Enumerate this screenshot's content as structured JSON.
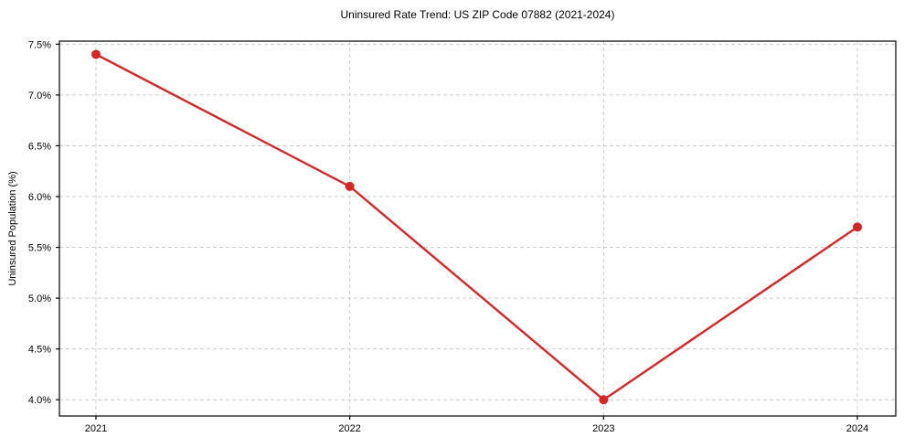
{
  "chart_data": {
    "type": "line",
    "title": "Uninsured Rate Trend: US ZIP Code 07882 (2021-2024)",
    "xlabel": "",
    "ylabel": "Uninsured Population (%)",
    "x": [
      2021,
      2022,
      2023,
      2024
    ],
    "x_tick_labels": [
      "2021",
      "2022",
      "2023",
      "2024"
    ],
    "values": [
      7.4,
      6.1,
      4.0,
      5.7
    ],
    "y_tick_values": [
      7.5,
      7.0,
      6.5,
      6.0,
      5.5,
      5.0,
      4.5,
      4.0
    ],
    "y_tick_labels": [
      "7.5%",
      "7.0%",
      "6.5%",
      "6.0%",
      "5.5%",
      "5.0%",
      "4.5%",
      "4.0%"
    ],
    "ylim": [
      3.84,
      7.53
    ],
    "grid": true,
    "grid_style": "dashed",
    "legend": false,
    "marker": "circle",
    "colors": {
      "line": "#d62728",
      "marker": "#d62728",
      "grid": "#cccccc",
      "axis": "#000000",
      "background": "#ffffff"
    }
  }
}
